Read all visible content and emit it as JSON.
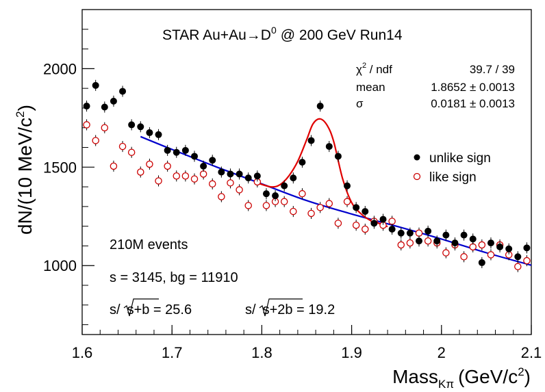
{
  "chart_data": {
    "type": "scatter",
    "title": "STAR Au+Au→D",
    "title_sup": "0",
    "title_suffix": "@ 200 GeV Run14",
    "xlabel_main": "Mass",
    "xlabel_sub": "Kπ",
    "xlabel_unit": "(GeV/c",
    "xlabel_unit_sup": "2",
    "xlabel_close": ")",
    "ylabel": "dN/(10 MeV/c",
    "ylabel_sup": "2",
    "ylabel_close": ")",
    "xlim": [
      1.6,
      2.1
    ],
    "ylim": [
      650,
      2300
    ],
    "x_ticks": [
      1.6,
      1.7,
      1.8,
      1.9,
      2.0,
      2.1
    ],
    "x_tick_labels": [
      "1.6",
      "1.7",
      "1.8",
      "1.9",
      "2",
      "2.1"
    ],
    "y_ticks": [
      1000,
      1500,
      2000
    ],
    "y_tick_labels": [
      "1000",
      "1500",
      "2000"
    ],
    "fit_stats": {
      "chi2_label": "χ",
      "chi2_sup": "2",
      "chi2_rest": " / ndf",
      "chi2_value": "39.7 / 39",
      "mean_label": "mean",
      "mean_value": "1.8652 ± 0.0013",
      "sigma_label": "σ",
      "sigma_value": "0.0181 ± 0.0013"
    },
    "legend": {
      "position": "right",
      "unlike_label": "unlike sign",
      "like_label": "like sign"
    },
    "annotations": {
      "events": "210M events",
      "counts": "s = 3145,  bg = 11910",
      "sig1_prefix": "s/",
      "sig1_inner": "s+b",
      "sig1_value": " = 25.6",
      "sig2_prefix": "s/",
      "sig2_inner": "s+2b",
      "sig2_value": " = 19.2"
    },
    "colors": {
      "unlike": "#000000",
      "like": "#cc0000",
      "signal_fit": "#e00000",
      "background_fit": "#0000cc"
    },
    "series": [
      {
        "name": "unlike sign",
        "style": "filled",
        "x": [
          1.605,
          1.615,
          1.625,
          1.635,
          1.645,
          1.655,
          1.665,
          1.675,
          1.685,
          1.695,
          1.705,
          1.715,
          1.725,
          1.735,
          1.745,
          1.755,
          1.765,
          1.775,
          1.785,
          1.795,
          1.805,
          1.815,
          1.825,
          1.835,
          1.845,
          1.855,
          1.865,
          1.875,
          1.885,
          1.895,
          1.905,
          1.915,
          1.925,
          1.935,
          1.945,
          1.955,
          1.965,
          1.975,
          1.985,
          1.995,
          2.005,
          2.015,
          2.025,
          2.035,
          2.045,
          2.055,
          2.065,
          2.075,
          2.085,
          2.095
        ],
        "y": [
          1810,
          1915,
          1805,
          1835,
          1885,
          1715,
          1705,
          1675,
          1665,
          1585,
          1575,
          1585,
          1555,
          1505,
          1535,
          1475,
          1465,
          1465,
          1445,
          1455,
          1365,
          1355,
          1405,
          1445,
          1525,
          1635,
          1810,
          1605,
          1555,
          1405,
          1295,
          1275,
          1215,
          1235,
          1185,
          1165,
          1165,
          1125,
          1175,
          1125,
          1155,
          1115,
          1155,
          1135,
          1015,
          1115,
          1095,
          1085,
          1045,
          1090
        ],
        "err": 28
      },
      {
        "name": "like sign",
        "style": "open",
        "x": [
          1.605,
          1.615,
          1.625,
          1.635,
          1.645,
          1.655,
          1.665,
          1.675,
          1.685,
          1.695,
          1.705,
          1.715,
          1.725,
          1.735,
          1.745,
          1.755,
          1.765,
          1.775,
          1.785,
          1.795,
          1.805,
          1.815,
          1.825,
          1.835,
          1.845,
          1.855,
          1.865,
          1.875,
          1.885,
          1.895,
          1.905,
          1.915,
          1.925,
          1.935,
          1.945,
          1.955,
          1.965,
          1.975,
          1.985,
          1.995,
          2.005,
          2.015,
          2.025,
          2.035,
          2.045,
          2.055,
          2.065,
          2.075,
          2.085,
          2.095
        ],
        "y": [
          1715,
          1635,
          1700,
          1505,
          1605,
          1575,
          1475,
          1515,
          1430,
          1505,
          1455,
          1455,
          1440,
          1465,
          1415,
          1350,
          1420,
          1385,
          1305,
          1425,
          1305,
          1325,
          1325,
          1275,
          1365,
          1265,
          1295,
          1315,
          1215,
          1325,
          1205,
          1185,
          1225,
          1205,
          1225,
          1105,
          1115,
          1165,
          1125,
          1115,
          1065,
          1105,
          1045,
          1095,
          1105,
          1055,
          1105,
          1055,
          995,
          1025
        ],
        "err": 28
      }
    ],
    "fits": {
      "background_x": [
        1.665,
        1.7,
        1.75,
        1.8,
        1.85,
        1.9,
        1.95,
        2.0,
        2.05,
        2.1
      ],
      "background_y": [
        1655,
        1590,
        1500,
        1415,
        1330,
        1262,
        1200,
        1135,
        1065,
        1002
      ],
      "signal_x": [
        1.795,
        1.81,
        1.82,
        1.83,
        1.84,
        1.85,
        1.857,
        1.865,
        1.873,
        1.88,
        1.89,
        1.9,
        1.91,
        1.92,
        1.93,
        1.94
      ],
      "signal_y": [
        1420,
        1400,
        1410,
        1455,
        1530,
        1640,
        1720,
        1745,
        1710,
        1630,
        1440,
        1320,
        1265,
        1232,
        1215,
        1198
      ]
    }
  }
}
